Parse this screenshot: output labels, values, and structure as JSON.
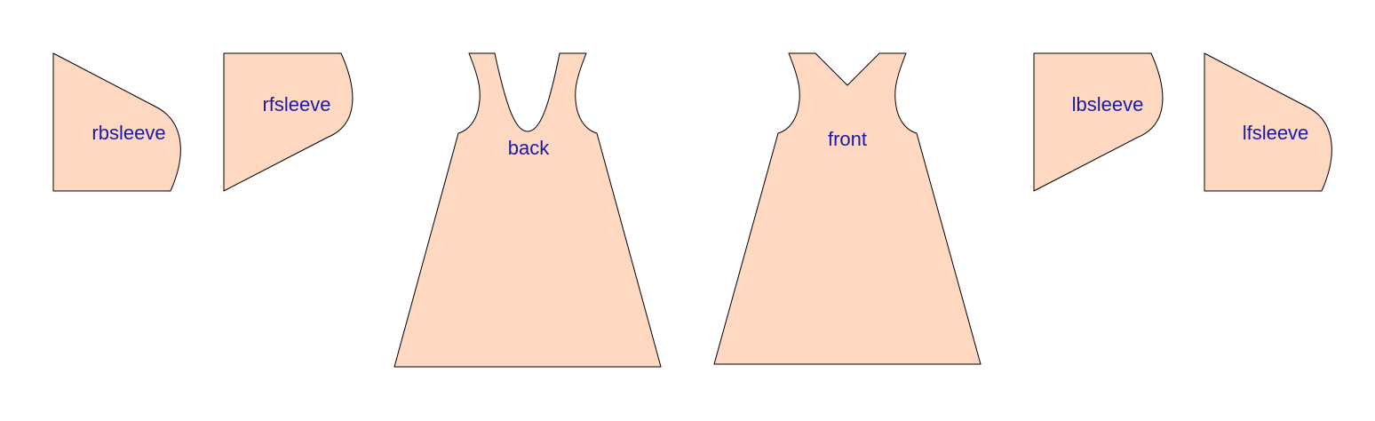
{
  "colors": {
    "piece_fill": "#fed8c1",
    "piece_stroke": "#000000",
    "label_text": "#1a1aa6",
    "background": "#ffffff"
  },
  "pieces": {
    "rbsleeve": {
      "label": "rbsleeve"
    },
    "rfsleeve": {
      "label": "rfsleeve"
    },
    "back": {
      "label": "back"
    },
    "front": {
      "label": "front"
    },
    "lbsleeve": {
      "label": "lbsleeve"
    },
    "lfsleeve": {
      "label": "lfsleeve"
    }
  }
}
